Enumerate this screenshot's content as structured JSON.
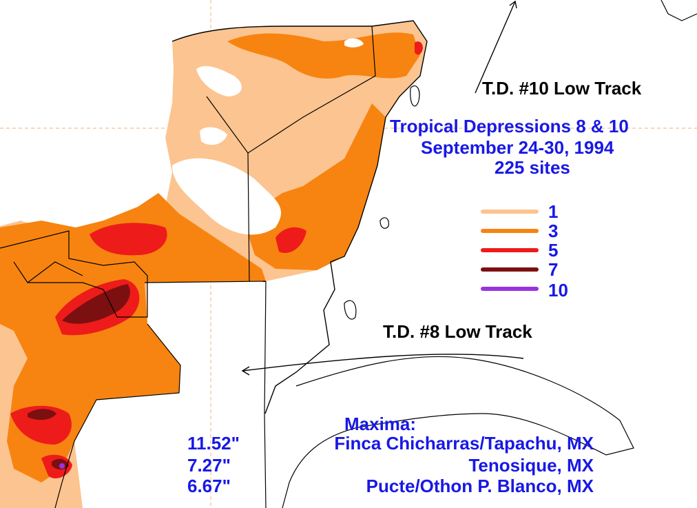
{
  "title": {
    "line1": "Tropical Depressions 8 & 10",
    "line2": "September 24-30, 1994",
    "line3": "225 sites"
  },
  "tracks": {
    "td10": "T.D. #10 Low Track",
    "td8": "T.D. #8 Low Track"
  },
  "legend": [
    {
      "label": "1",
      "color": "#fcc490"
    },
    {
      "label": "3",
      "color": "#f78410"
    },
    {
      "label": "5",
      "color": "#ee1b1b"
    },
    {
      "label": "7",
      "color": "#7c1010"
    },
    {
      "label": "10",
      "color": "#9933dd"
    }
  ],
  "maxima": {
    "heading": "Maxima:",
    "entries": [
      {
        "value": "11.52\"",
        "site": "Finca Chicharras/Tapachu, MX"
      },
      {
        "value": "7.27\"",
        "site": "Tenosique, MX"
      },
      {
        "value": "6.67\"",
        "site": "Pucte/Othon P. Blanco, MX"
      }
    ]
  },
  "colors": {
    "text_blue": "#1818e6",
    "ocean": "#ffffff",
    "grid": "#f0b070"
  }
}
